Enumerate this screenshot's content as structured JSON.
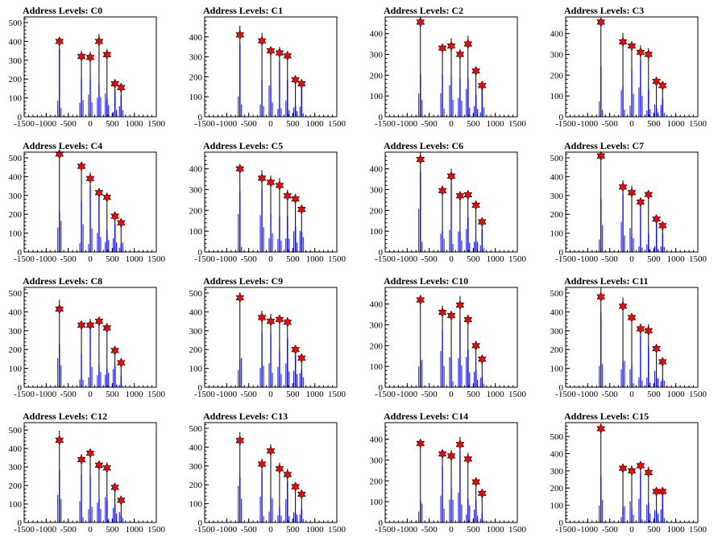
{
  "colors": {
    "histogram": "#0000ff",
    "marker": "#ff0000",
    "marker_edge": "#000000",
    "background": "#ffffff",
    "axis": "#000000"
  },
  "chart_data": [
    {
      "type": "bar",
      "title": "Address Levels: C0",
      "xlim": [
        -1500,
        1500
      ],
      "xticks": [
        -1500,
        -1000,
        -500,
        0,
        500,
        1000,
        1500
      ],
      "ylim": [
        0,
        530
      ],
      "yticks": [
        0,
        100,
        200,
        300,
        400,
        500
      ],
      "peaks": [
        {
          "x": -700,
          "y": 400
        },
        {
          "x": -200,
          "y": 320
        },
        {
          "x": 0,
          "y": 315
        },
        {
          "x": 200,
          "y": 400
        },
        {
          "x": 380,
          "y": 330
        },
        {
          "x": 560,
          "y": 175
        },
        {
          "x": 700,
          "y": 155
        }
      ]
    },
    {
      "type": "bar",
      "title": "Address Levels: C1",
      "xlim": [
        -1500,
        1500
      ],
      "xticks": [
        -1500,
        -1000,
        -500,
        0,
        500,
        1000,
        1500
      ],
      "ylim": [
        0,
        500
      ],
      "yticks": [
        0,
        100,
        200,
        300,
        400
      ],
      "peaks": [
        {
          "x": -700,
          "y": 410
        },
        {
          "x": -200,
          "y": 380
        },
        {
          "x": 0,
          "y": 330
        },
        {
          "x": 200,
          "y": 320
        },
        {
          "x": 380,
          "y": 305
        },
        {
          "x": 560,
          "y": 185
        },
        {
          "x": 700,
          "y": 165
        }
      ]
    },
    {
      "type": "bar",
      "title": "Address Levels: C2",
      "xlim": [
        -1500,
        1500
      ],
      "xticks": [
        -1500,
        -1000,
        -500,
        0,
        500,
        1000,
        1500
      ],
      "ylim": [
        0,
        480
      ],
      "yticks": [
        0,
        100,
        200,
        300,
        400
      ],
      "peaks": [
        {
          "x": -700,
          "y": 455
        },
        {
          "x": -200,
          "y": 330
        },
        {
          "x": 0,
          "y": 340
        },
        {
          "x": 200,
          "y": 300
        },
        {
          "x": 380,
          "y": 350
        },
        {
          "x": 560,
          "y": 220
        },
        {
          "x": 700,
          "y": 150
        }
      ]
    },
    {
      "type": "bar",
      "title": "Address Levels: C3",
      "xlim": [
        -1500,
        1500
      ],
      "xticks": [
        -1500,
        -1000,
        -500,
        0,
        500,
        1000,
        1500
      ],
      "ylim": [
        0,
        480
      ],
      "yticks": [
        0,
        100,
        200,
        300,
        400
      ],
      "peaks": [
        {
          "x": -700,
          "y": 455
        },
        {
          "x": -200,
          "y": 360
        },
        {
          "x": 0,
          "y": 340
        },
        {
          "x": 200,
          "y": 310
        },
        {
          "x": 380,
          "y": 300
        },
        {
          "x": 560,
          "y": 170
        },
        {
          "x": 700,
          "y": 150
        }
      ]
    },
    {
      "type": "bar",
      "title": "Address Levels: C4",
      "xlim": [
        -1500,
        1500
      ],
      "xticks": [
        -1500,
        -1000,
        -500,
        0,
        500,
        1000,
        1500
      ],
      "ylim": [
        0,
        530
      ],
      "yticks": [
        0,
        100,
        200,
        300,
        400,
        500
      ],
      "peaks": [
        {
          "x": -700,
          "y": 520
        },
        {
          "x": -200,
          "y": 455
        },
        {
          "x": 0,
          "y": 390
        },
        {
          "x": 200,
          "y": 315
        },
        {
          "x": 380,
          "y": 290
        },
        {
          "x": 560,
          "y": 190
        },
        {
          "x": 700,
          "y": 155
        }
      ]
    },
    {
      "type": "bar",
      "title": "Address Levels: C5",
      "xlim": [
        -1500,
        1500
      ],
      "xticks": [
        -1500,
        -1000,
        -500,
        0,
        500,
        1000,
        1500
      ],
      "ylim": [
        0,
        480
      ],
      "yticks": [
        0,
        100,
        200,
        300,
        400
      ],
      "peaks": [
        {
          "x": -700,
          "y": 400
        },
        {
          "x": -200,
          "y": 355
        },
        {
          "x": 0,
          "y": 335
        },
        {
          "x": 200,
          "y": 320
        },
        {
          "x": 380,
          "y": 270
        },
        {
          "x": 560,
          "y": 255
        },
        {
          "x": 700,
          "y": 205
        }
      ]
    },
    {
      "type": "bar",
      "title": "Address Levels: C6",
      "xlim": [
        -1500,
        1500
      ],
      "xticks": [
        -1500,
        -1000,
        -500,
        0,
        500,
        1000,
        1500
      ],
      "ylim": [
        0,
        480
      ],
      "yticks": [
        0,
        100,
        200,
        300,
        400
      ],
      "peaks": [
        {
          "x": -700,
          "y": 445
        },
        {
          "x": -200,
          "y": 295
        },
        {
          "x": 0,
          "y": 365
        },
        {
          "x": 200,
          "y": 270
        },
        {
          "x": 380,
          "y": 275
        },
        {
          "x": 560,
          "y": 225
        },
        {
          "x": 700,
          "y": 145
        }
      ]
    },
    {
      "type": "bar",
      "title": "Address Levels: C7",
      "xlim": [
        -1500,
        1500
      ],
      "xticks": [
        -1500,
        -1000,
        -500,
        0,
        500,
        1000,
        1500
      ],
      "ylim": [
        0,
        530
      ],
      "yticks": [
        0,
        100,
        200,
        300,
        400,
        500
      ],
      "peaks": [
        {
          "x": -700,
          "y": 510
        },
        {
          "x": -200,
          "y": 345
        },
        {
          "x": 0,
          "y": 315
        },
        {
          "x": 200,
          "y": 265
        },
        {
          "x": 380,
          "y": 305
        },
        {
          "x": 560,
          "y": 175
        },
        {
          "x": 700,
          "y": 140
        }
      ]
    },
    {
      "type": "bar",
      "title": "Address Levels: C8",
      "xlim": [
        -1500,
        1500
      ],
      "xticks": [
        -1500,
        -1000,
        -500,
        0,
        500,
        1000,
        1500
      ],
      "ylim": [
        0,
        530
      ],
      "yticks": [
        0,
        100,
        200,
        300,
        400,
        500
      ],
      "peaks": [
        {
          "x": -700,
          "y": 415
        },
        {
          "x": -200,
          "y": 330
        },
        {
          "x": 0,
          "y": 330
        },
        {
          "x": 200,
          "y": 350
        },
        {
          "x": 380,
          "y": 315
        },
        {
          "x": 560,
          "y": 195
        },
        {
          "x": 700,
          "y": 130
        }
      ]
    },
    {
      "type": "bar",
      "title": "Address Levels: C9",
      "xlim": [
        -1500,
        1500
      ],
      "xticks": [
        -1500,
        -1000,
        -500,
        0,
        500,
        1000,
        1500
      ],
      "ylim": [
        0,
        530
      ],
      "yticks": [
        0,
        100,
        200,
        300,
        400,
        500
      ],
      "peaks": [
        {
          "x": -700,
          "y": 475
        },
        {
          "x": -200,
          "y": 370
        },
        {
          "x": 0,
          "y": 350
        },
        {
          "x": 200,
          "y": 360
        },
        {
          "x": 380,
          "y": 345
        },
        {
          "x": 560,
          "y": 200
        },
        {
          "x": 700,
          "y": 155
        }
      ]
    },
    {
      "type": "bar",
      "title": "Address Levels: C10",
      "xlim": [
        -1500,
        1500
      ],
      "xticks": [
        -1500,
        -1000,
        -500,
        0,
        500,
        1000,
        1500
      ],
      "ylim": [
        0,
        480
      ],
      "yticks": [
        0,
        100,
        200,
        300,
        400
      ],
      "peaks": [
        {
          "x": -700,
          "y": 420
        },
        {
          "x": -200,
          "y": 360
        },
        {
          "x": 0,
          "y": 345
        },
        {
          "x": 200,
          "y": 395
        },
        {
          "x": 380,
          "y": 325
        },
        {
          "x": 560,
          "y": 200
        },
        {
          "x": 700,
          "y": 135
        }
      ]
    },
    {
      "type": "bar",
      "title": "Address Levels: C11",
      "xlim": [
        -1500,
        1500
      ],
      "xticks": [
        -1500,
        -1000,
        -500,
        0,
        500,
        1000,
        1500
      ],
      "ylim": [
        0,
        530
      ],
      "yticks": [
        0,
        100,
        200,
        300,
        400,
        500
      ],
      "peaks": [
        {
          "x": -700,
          "y": 480
        },
        {
          "x": -200,
          "y": 430
        },
        {
          "x": 0,
          "y": 370
        },
        {
          "x": 200,
          "y": 310
        },
        {
          "x": 380,
          "y": 300
        },
        {
          "x": 560,
          "y": 205
        },
        {
          "x": 700,
          "y": 135
        }
      ]
    },
    {
      "type": "bar",
      "title": "Address Levels: C12",
      "xlim": [
        -1500,
        1500
      ],
      "xticks": [
        -1500,
        -1000,
        -500,
        0,
        500,
        1000,
        1500
      ],
      "ylim": [
        0,
        540
      ],
      "yticks": [
        0,
        100,
        200,
        300,
        400,
        500
      ],
      "peaks": [
        {
          "x": -700,
          "y": 445
        },
        {
          "x": -200,
          "y": 340
        },
        {
          "x": 0,
          "y": 375
        },
        {
          "x": 200,
          "y": 310
        },
        {
          "x": 380,
          "y": 295
        },
        {
          "x": 560,
          "y": 190
        },
        {
          "x": 700,
          "y": 120
        }
      ]
    },
    {
      "type": "bar",
      "title": "Address Levels: C13",
      "xlim": [
        -1500,
        1500
      ],
      "xticks": [
        -1500,
        -1000,
        -500,
        0,
        500,
        1000,
        1500
      ],
      "ylim": [
        0,
        530
      ],
      "yticks": [
        0,
        100,
        200,
        300,
        400,
        500
      ],
      "peaks": [
        {
          "x": -700,
          "y": 435
        },
        {
          "x": -200,
          "y": 310
        },
        {
          "x": 0,
          "y": 380
        },
        {
          "x": 200,
          "y": 285
        },
        {
          "x": 380,
          "y": 255
        },
        {
          "x": 560,
          "y": 190
        },
        {
          "x": 700,
          "y": 150
        }
      ]
    },
    {
      "type": "bar",
      "title": "Address Levels: C14",
      "xlim": [
        -1500,
        1500
      ],
      "xticks": [
        -1500,
        -1000,
        -500,
        0,
        500,
        1000,
        1500
      ],
      "ylim": [
        0,
        480
      ],
      "yticks": [
        0,
        100,
        200,
        300,
        400
      ],
      "peaks": [
        {
          "x": -700,
          "y": 380
        },
        {
          "x": -200,
          "y": 330
        },
        {
          "x": 0,
          "y": 320
        },
        {
          "x": 200,
          "y": 375
        },
        {
          "x": 380,
          "y": 305
        },
        {
          "x": 560,
          "y": 195
        },
        {
          "x": 700,
          "y": 140
        }
      ]
    },
    {
      "type": "bar",
      "title": "Address Levels: C15",
      "xlim": [
        -1500,
        1500
      ],
      "xticks": [
        -1500,
        -1000,
        -500,
        0,
        500,
        1000,
        1500
      ],
      "ylim": [
        0,
        580
      ],
      "yticks": [
        0,
        100,
        200,
        300,
        400,
        500
      ],
      "peaks": [
        {
          "x": -700,
          "y": 545
        },
        {
          "x": -200,
          "y": 315
        },
        {
          "x": 0,
          "y": 300
        },
        {
          "x": 200,
          "y": 330
        },
        {
          "x": 380,
          "y": 290
        },
        {
          "x": 560,
          "y": 180
        },
        {
          "x": 700,
          "y": 180
        }
      ]
    }
  ]
}
